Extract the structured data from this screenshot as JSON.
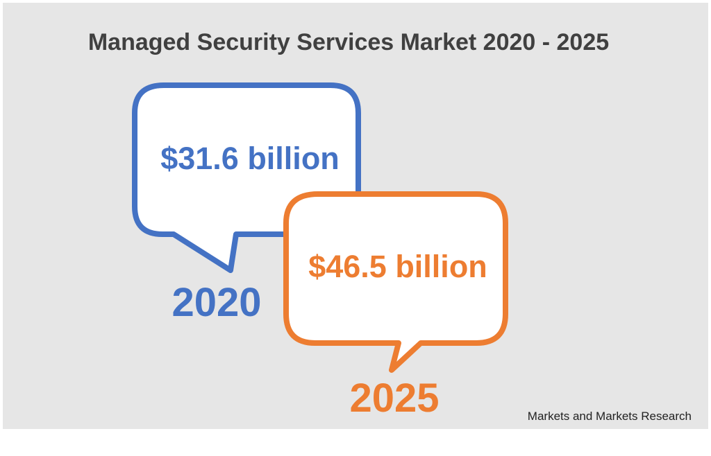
{
  "chart_data": {
    "type": "table",
    "title": "Managed Security Services Market 2020 - 2025",
    "unit": "billion",
    "points": [
      {
        "year": "2020",
        "value": 31.6,
        "value_label": "$31.6 billion",
        "color": "#4472C4"
      },
      {
        "year": "2025",
        "value": 46.5,
        "value_label": "$46.5 billion",
        "color": "#ED7D31"
      }
    ],
    "source": "Markets and Markets Research"
  },
  "colors": {
    "panel_background": "#E6E6E6",
    "title_text": "#404040",
    "bubble_fill": "#FFFFFF",
    "source_text": "#222222"
  }
}
